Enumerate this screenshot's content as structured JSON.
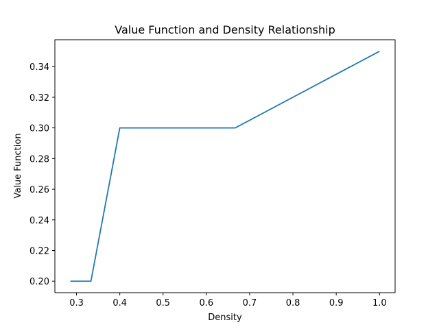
{
  "chart_data": {
    "type": "line",
    "title": "Value Function and Density Relationship",
    "xlabel": "Density",
    "ylabel": "Value Function",
    "xlim": [
      0.25,
      1.036
    ],
    "ylim": [
      0.1925,
      0.3575
    ],
    "xticks": [
      0.3,
      0.4,
      0.5,
      0.6,
      0.7,
      0.8,
      0.9,
      1.0
    ],
    "xtick_labels": [
      "0.3",
      "0.4",
      "0.5",
      "0.6",
      "0.7",
      "0.8",
      "0.9",
      "1.0"
    ],
    "yticks": [
      0.2,
      0.22,
      0.24,
      0.26,
      0.28,
      0.3,
      0.32,
      0.34
    ],
    "ytick_labels": [
      "0.20",
      "0.22",
      "0.24",
      "0.26",
      "0.28",
      "0.30",
      "0.32",
      "0.34"
    ],
    "grid": false,
    "series": [
      {
        "color": "#1f77b4",
        "x": [
          0.2857,
          0.3333,
          0.4,
          0.6667,
          1.0
        ],
        "y": [
          0.2,
          0.2,
          0.3,
          0.3,
          0.35
        ]
      }
    ]
  }
}
